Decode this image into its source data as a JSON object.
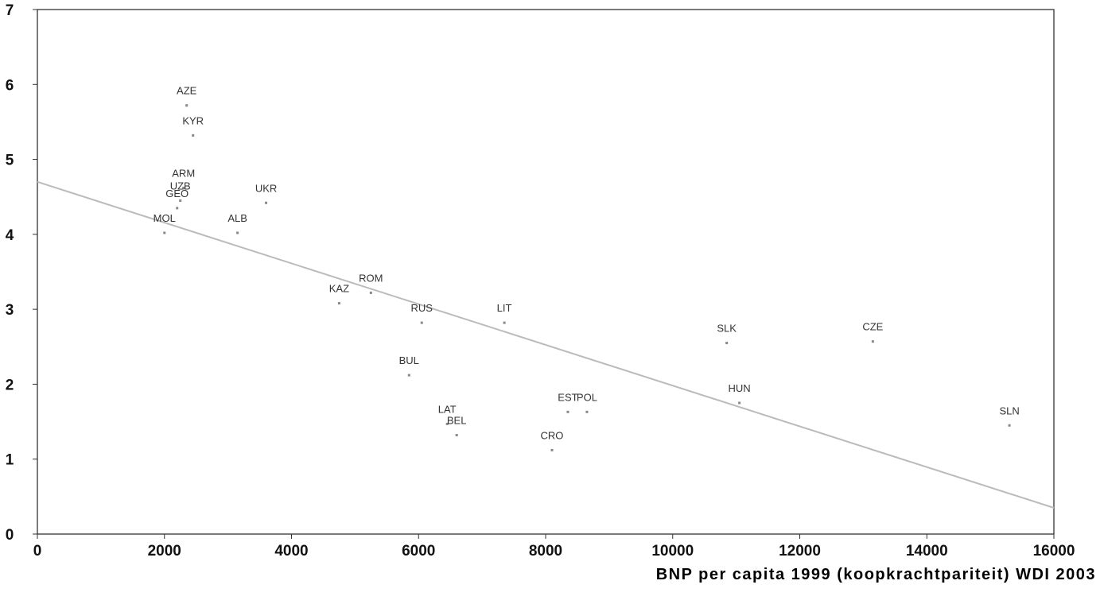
{
  "chart_data": {
    "type": "scatter",
    "title": "",
    "xlabel": "BNP per capita 1999 (koopkrachtpariteit) WDI 2003",
    "ylabel": "",
    "xlim": [
      0,
      16000
    ],
    "ylim": [
      0,
      7
    ],
    "xticks": [
      0,
      2000,
      4000,
      6000,
      8000,
      10000,
      12000,
      14000,
      16000
    ],
    "yticks": [
      0,
      1,
      2,
      3,
      4,
      5,
      6,
      7
    ],
    "grid": false,
    "legend": "none",
    "points": [
      {
        "label": "AZE",
        "x": 2350,
        "y": 5.72
      },
      {
        "label": "KYR",
        "x": 2450,
        "y": 5.32
      },
      {
        "label": "ARM",
        "x": 2300,
        "y": 4.62
      },
      {
        "label": "UZB",
        "x": 2250,
        "y": 4.45
      },
      {
        "label": "GEO",
        "x": 2200,
        "y": 4.35
      },
      {
        "label": "UKR",
        "x": 3600,
        "y": 4.42
      },
      {
        "label": "MOL",
        "x": 2000,
        "y": 4.02
      },
      {
        "label": "ALB",
        "x": 3150,
        "y": 4.02
      },
      {
        "label": "ROM",
        "x": 5250,
        "y": 3.22
      },
      {
        "label": "KAZ",
        "x": 4750,
        "y": 3.08
      },
      {
        "label": "RUS",
        "x": 6050,
        "y": 2.82
      },
      {
        "label": "LIT",
        "x": 7350,
        "y": 2.82
      },
      {
        "label": "SLK",
        "x": 10850,
        "y": 2.55
      },
      {
        "label": "CZE",
        "x": 13150,
        "y": 2.57
      },
      {
        "label": "BUL",
        "x": 5850,
        "y": 2.12
      },
      {
        "label": "EST",
        "x": 8350,
        "y": 1.63
      },
      {
        "label": "POL",
        "x": 8650,
        "y": 1.63
      },
      {
        "label": "HUN",
        "x": 11050,
        "y": 1.75
      },
      {
        "label": "LAT",
        "x": 6450,
        "y": 1.47
      },
      {
        "label": "BEL",
        "x": 6600,
        "y": 1.32
      },
      {
        "label": "CRO",
        "x": 8100,
        "y": 1.12
      },
      {
        "label": "SLN",
        "x": 15300,
        "y": 1.45
      }
    ],
    "trendline": {
      "x": [
        0,
        16000
      ],
      "y": [
        4.7,
        0.35
      ]
    },
    "colors": {
      "point": "#888888",
      "line": "#bbbbbb",
      "axis": "#333333"
    }
  }
}
